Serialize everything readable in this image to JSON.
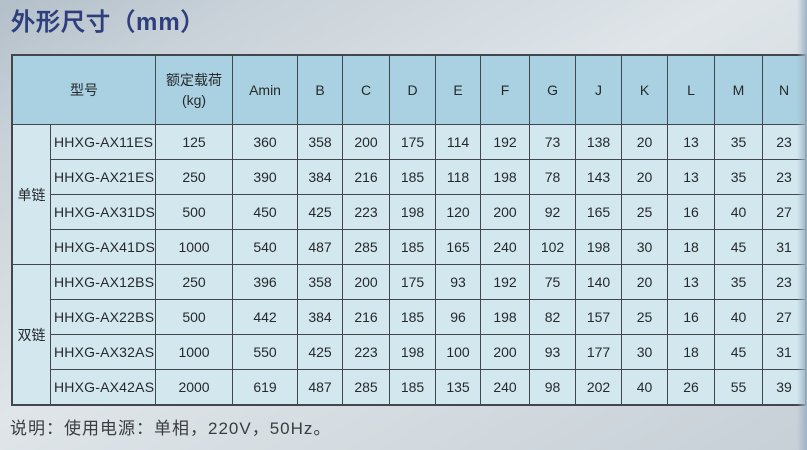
{
  "page": {
    "title": "外形尺寸（mm）",
    "note": "说明：使用电源：单相，220V，50Hz。"
  },
  "colors": {
    "title_color": "#2e3e7c",
    "header_bg": "#a9d1e1",
    "cell_bg": "#d3e7ee",
    "border_color": "#41474d"
  },
  "table": {
    "header": {
      "model": "型号",
      "load_line1": "额定载荷",
      "load_line2": "(kg)",
      "dims": [
        "Amin",
        "B",
        "C",
        "D",
        "E",
        "F",
        "G",
        "J",
        "K",
        "L",
        "M",
        "N"
      ]
    },
    "groups": [
      {
        "label": "单链",
        "rows": [
          {
            "model": "HHXG-AX11ES",
            "load": "125",
            "values": [
              "360",
              "358",
              "200",
              "175",
              "114",
              "192",
              "73",
              "138",
              "20",
              "13",
              "35",
              "23"
            ]
          },
          {
            "model": "HHXG-AX21ES",
            "load": "250",
            "values": [
              "390",
              "384",
              "216",
              "185",
              "118",
              "198",
              "78",
              "143",
              "20",
              "13",
              "35",
              "23"
            ]
          },
          {
            "model": "HHXG-AX31DS",
            "load": "500",
            "values": [
              "450",
              "425",
              "223",
              "198",
              "120",
              "200",
              "92",
              "165",
              "25",
              "16",
              "40",
              "27"
            ]
          },
          {
            "model": "HHXG-AX41DS",
            "load": "1000",
            "values": [
              "540",
              "487",
              "285",
              "185",
              "165",
              "240",
              "102",
              "198",
              "30",
              "18",
              "45",
              "31"
            ]
          }
        ]
      },
      {
        "label": "双链",
        "rows": [
          {
            "model": "HHXG-AX12BS",
            "load": "250",
            "values": [
              "396",
              "358",
              "200",
              "175",
              "93",
              "192",
              "75",
              "140",
              "20",
              "13",
              "35",
              "23"
            ]
          },
          {
            "model": "HHXG-AX22BS",
            "load": "500",
            "values": [
              "442",
              "384",
              "216",
              "185",
              "96",
              "198",
              "82",
              "157",
              "25",
              "16",
              "40",
              "27"
            ]
          },
          {
            "model": "HHXG-AX32AS",
            "load": "1000",
            "values": [
              "550",
              "425",
              "223",
              "198",
              "100",
              "200",
              "93",
              "177",
              "30",
              "18",
              "45",
              "31"
            ]
          },
          {
            "model": "HHXG-AX42AS",
            "load": "2000",
            "values": [
              "619",
              "487",
              "285",
              "185",
              "135",
              "240",
              "98",
              "202",
              "40",
              "26",
              "55",
              "39"
            ]
          }
        ]
      }
    ]
  }
}
